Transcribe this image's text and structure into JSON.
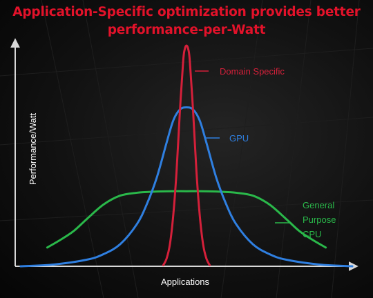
{
  "title": {
    "line1": "Application-Specific optimization provides better",
    "line2": "performance-per-Watt"
  },
  "colors": {
    "title": "#e3122a",
    "axis": "#d8d8d8",
    "axis_label": "#ffffff",
    "domain_specific": "#d4203a",
    "gpu": "#2f7fe0",
    "general_cpu": "#2ab84a"
  },
  "chart_data": {
    "type": "line",
    "xlabel": "Applications",
    "ylabel": "Performance/Watt",
    "ticks": false,
    "grid": false,
    "xlim": [
      0,
      100
    ],
    "ylim": [
      0,
      100
    ],
    "series": [
      {
        "name": "Domain Specific",
        "label_lines": [
          "Domain Specific"
        ],
        "color": "#d4203a",
        "x": [
          43.0,
          44.0,
          45.0,
          46.0,
          47.0,
          48.0,
          49.0,
          49.5,
          50.0,
          50.5,
          51.0,
          52.0,
          53.0,
          54.0,
          55.0,
          56.0,
          57.0
        ],
        "values": [
          0.5,
          3.5,
          10.0,
          23.0,
          43.0,
          70.0,
          93.0,
          98.5,
          100.0,
          98.5,
          93.0,
          70.0,
          43.0,
          23.0,
          10.0,
          3.5,
          0.5
        ]
      },
      {
        "name": "GPU",
        "label_lines": [
          "GPU"
        ],
        "color": "#2f7fe0",
        "x": [
          0.0,
          10.0,
          20.0,
          25.0,
          30.0,
          35.0,
          38.0,
          41.0,
          44.0,
          46.0,
          48.0,
          50.0,
          52.0,
          54.0,
          56.0,
          59.0,
          62.0,
          65.0,
          70.0,
          75.0,
          80.0,
          90.0,
          100.0
        ],
        "values": [
          0.0,
          0.8,
          3.0,
          5.5,
          10.0,
          19.0,
          28.0,
          40.0,
          56.0,
          66.0,
          71.0,
          72.0,
          71.0,
          66.0,
          56.0,
          40.0,
          28.0,
          19.0,
          10.0,
          5.5,
          3.0,
          0.8,
          0.0
        ]
      },
      {
        "name": "General Purpose CPU",
        "label_lines": [
          "General",
          "Purpose",
          "CPU"
        ],
        "color": "#2ab84a",
        "x": [
          8.0,
          12.0,
          16.0,
          20.0,
          25.0,
          30.0,
          35.0,
          40.0,
          45.0,
          50.0,
          55.0,
          60.0,
          65.0,
          70.0,
          75.0,
          80.0,
          84.0,
          88.0,
          92.0
        ],
        "values": [
          8.5,
          12.0,
          16.0,
          21.5,
          28.0,
          32.0,
          33.3,
          33.8,
          34.0,
          34.0,
          34.0,
          33.8,
          33.3,
          32.0,
          28.0,
          21.5,
          16.0,
          12.0,
          8.5
        ]
      }
    ]
  }
}
